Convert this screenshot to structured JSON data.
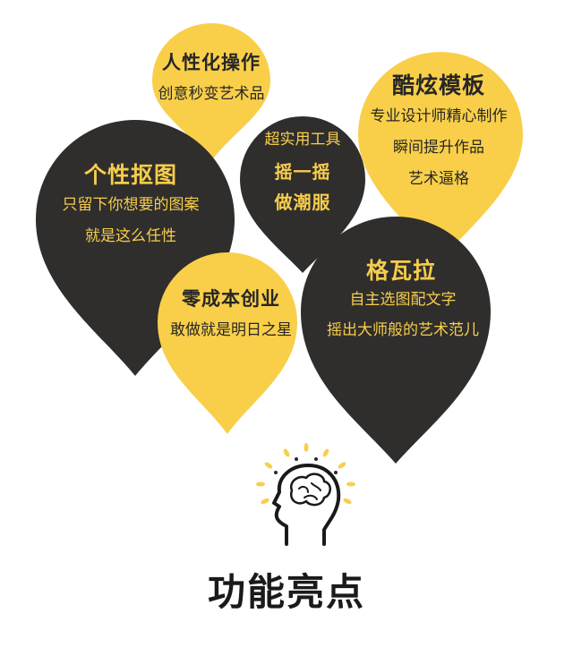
{
  "colors": {
    "yellow": "#f9cf4a",
    "dark": "#2f2e2d",
    "gold_text": "#f7cd4b",
    "dark_text": "#262626"
  },
  "bubbles": {
    "humanized": {
      "title": "人性化操作",
      "lines": [
        "创意秒变艺术品"
      ]
    },
    "templates": {
      "title": "酷炫模板",
      "lines": [
        "专业设计师精心制作",
        "瞬间提升作品",
        "艺术逼格"
      ]
    },
    "cutout": {
      "title": "个性抠图",
      "lines": [
        "只留下你想要的图案",
        "就是这么任性"
      ]
    },
    "shake": {
      "subtitle": "超实用工具",
      "title_lines": [
        "摇一摇",
        "做潮服"
      ]
    },
    "gewala": {
      "title": "格瓦拉",
      "lines": [
        "自主选图配文字",
        "摇出大师般的艺术范儿"
      ]
    },
    "zerocost": {
      "title": "零成本创业",
      "lines": [
        "敢做就是明日之星"
      ]
    }
  },
  "footer": {
    "title": "功能亮点",
    "icon": "brain-head-icon"
  }
}
